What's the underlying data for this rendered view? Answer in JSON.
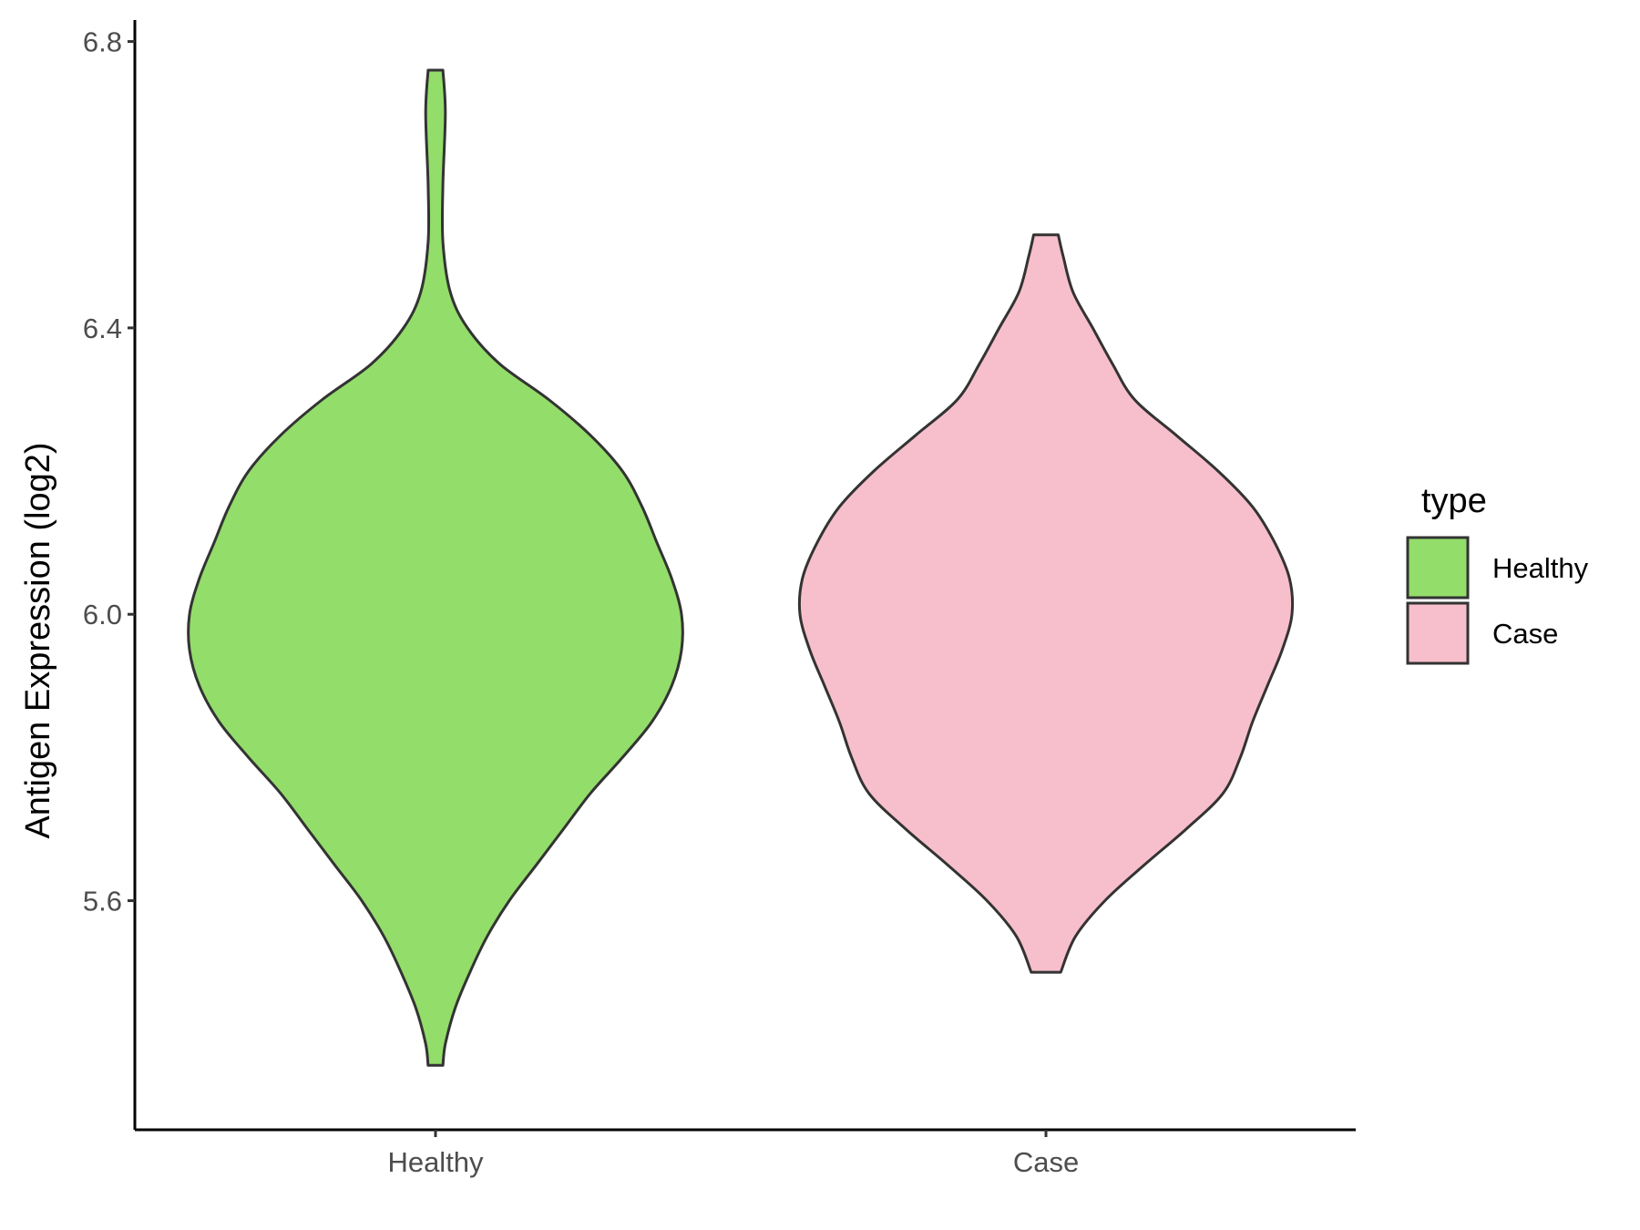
{
  "chart_data": {
    "type": "violin",
    "ylabel": "Antigen Expression (log2)",
    "xlabel": "",
    "ylim": [
      5.28,
      6.83
    ],
    "y_ticks": [
      "5.6",
      "6.0",
      "6.4",
      "6.8"
    ],
    "y_tick_values": [
      5.6,
      6.0,
      6.4,
      6.8
    ],
    "categories": [
      "Healthy",
      "Case"
    ],
    "grid": false,
    "legend": {
      "title": "type",
      "position": "right",
      "entries": [
        "Healthy",
        "Case"
      ]
    },
    "series": [
      {
        "name": "Healthy",
        "color": "#93dd6a",
        "min": 5.37,
        "max": 6.76,
        "density": [
          [
            6.76,
            0.03
          ],
          [
            6.7,
            0.04
          ],
          [
            6.6,
            0.03
          ],
          [
            6.52,
            0.03
          ],
          [
            6.45,
            0.06
          ],
          [
            6.4,
            0.13
          ],
          [
            6.35,
            0.26
          ],
          [
            6.3,
            0.46
          ],
          [
            6.25,
            0.63
          ],
          [
            6.2,
            0.76
          ],
          [
            6.15,
            0.84
          ],
          [
            6.1,
            0.9
          ],
          [
            6.05,
            0.96
          ],
          [
            6.0,
            1.0
          ],
          [
            5.95,
            1.0
          ],
          [
            5.9,
            0.96
          ],
          [
            5.85,
            0.88
          ],
          [
            5.8,
            0.76
          ],
          [
            5.75,
            0.63
          ],
          [
            5.7,
            0.52
          ],
          [
            5.65,
            0.41
          ],
          [
            5.6,
            0.3
          ],
          [
            5.55,
            0.21
          ],
          [
            5.5,
            0.14
          ],
          [
            5.45,
            0.08
          ],
          [
            5.4,
            0.04
          ],
          [
            5.37,
            0.03
          ]
        ]
      },
      {
        "name": "Case",
        "color": "#f7bfcb",
        "min": 5.5,
        "max": 6.53,
        "density": [
          [
            6.53,
            0.05
          ],
          [
            6.5,
            0.07
          ],
          [
            6.45,
            0.11
          ],
          [
            6.4,
            0.19
          ],
          [
            6.35,
            0.27
          ],
          [
            6.3,
            0.36
          ],
          [
            6.25,
            0.53
          ],
          [
            6.2,
            0.7
          ],
          [
            6.15,
            0.84
          ],
          [
            6.1,
            0.93
          ],
          [
            6.05,
            0.99
          ],
          [
            6.0,
            1.0
          ],
          [
            5.95,
            0.96
          ],
          [
            5.9,
            0.9
          ],
          [
            5.85,
            0.84
          ],
          [
            5.8,
            0.79
          ],
          [
            5.75,
            0.72
          ],
          [
            5.7,
            0.57
          ],
          [
            5.65,
            0.4
          ],
          [
            5.6,
            0.24
          ],
          [
            5.55,
            0.12
          ],
          [
            5.5,
            0.06
          ]
        ]
      }
    ]
  }
}
